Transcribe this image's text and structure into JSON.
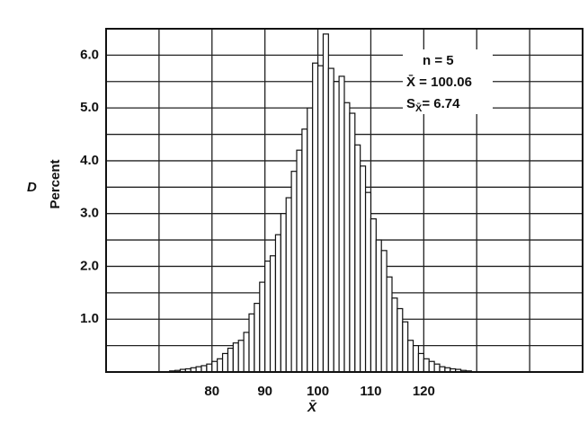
{
  "chart_data": {
    "type": "histogram",
    "panel_label": "D",
    "ylabel": "Percent",
    "xlabel": "X̄",
    "annotations": [
      [
        "n = 5"
      ],
      [
        "X̄ = 100.06"
      ],
      [
        "S",
        "X̄",
        "= 6.74"
      ]
    ],
    "bins": [
      72,
      73,
      74,
      75,
      76,
      77,
      78,
      79,
      80,
      81,
      82,
      83,
      84,
      85,
      86,
      87,
      88,
      89,
      90,
      91,
      92,
      93,
      94,
      95,
      96,
      97,
      98,
      99,
      100,
      101,
      102,
      103,
      104,
      105,
      106,
      107,
      108,
      109,
      110,
      111,
      112,
      113,
      114,
      115,
      116,
      117,
      118,
      119,
      120,
      121,
      122,
      123,
      124,
      125,
      126,
      127,
      128,
      129
    ],
    "counts": [
      0.02,
      0.03,
      0.05,
      0.06,
      0.08,
      0.1,
      0.12,
      0.15,
      0.2,
      0.25,
      0.35,
      0.45,
      0.55,
      0.6,
      0.75,
      1.1,
      1.3,
      1.7,
      2.1,
      2.2,
      2.6,
      3.0,
      3.3,
      3.8,
      4.2,
      4.6,
      5.0,
      5.85,
      5.8,
      6.4,
      5.75,
      5.5,
      5.6,
      5.1,
      4.9,
      4.3,
      3.9,
      3.4,
      2.9,
      2.5,
      2.3,
      1.8,
      1.4,
      1.2,
      0.95,
      0.6,
      0.5,
      0.35,
      0.25,
      0.2,
      0.15,
      0.1,
      0.08,
      0.06,
      0.05,
      0.03,
      0.02
    ],
    "color": "#ffffff",
    "edgecolor": "#111111",
    "xlim": [
      60,
      150
    ],
    "ylim": [
      0,
      6.5
    ],
    "xticks": [
      80,
      90,
      100,
      110,
      120
    ],
    "yticks": [
      {
        "value": 1,
        "label": "1.0"
      },
      {
        "value": 2,
        "label": "2.0"
      },
      {
        "value": 3,
        "label": "3.0"
      },
      {
        "value": 4,
        "label": "4.0"
      },
      {
        "value": 5,
        "label": "5.0"
      },
      {
        "value": 6,
        "label": "6.0"
      }
    ],
    "xgrid": [
      70,
      80,
      90,
      100,
      110,
      120,
      130,
      140
    ],
    "ygrid": [
      0.5,
      1,
      1.5,
      2,
      2.5,
      3,
      3.5,
      4,
      4.5,
      5,
      5.5,
      6
    ]
  }
}
